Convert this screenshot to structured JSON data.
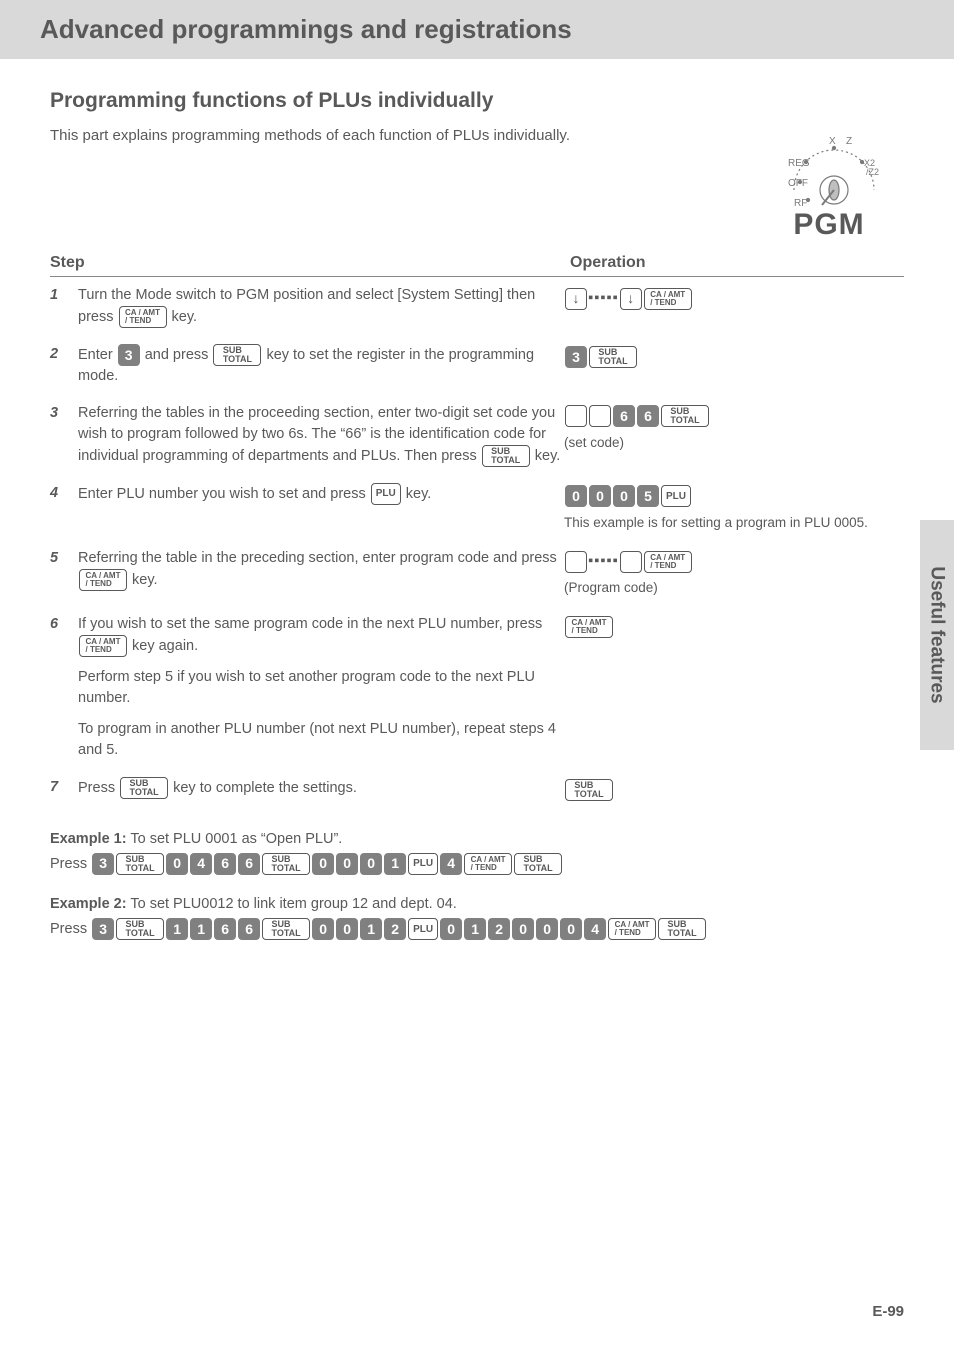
{
  "header": "Advanced programmings and registrations",
  "subheading": "Programming functions of PLUs individually",
  "intro": "This part explains programming methods of each function of PLUs individually.",
  "pgm_label": "PGM",
  "dial": {
    "labels": [
      "X",
      "Z",
      "REG",
      "X2/Z2",
      "OFF",
      "RF"
    ]
  },
  "columns": {
    "step": "Step",
    "operation": "Operation"
  },
  "key_labels": {
    "caamt": "CA / AMT\n/ TEND",
    "sub": "SUB\nTOTAL",
    "plu": "PLU"
  },
  "steps": [
    {
      "n": "1",
      "desc_parts": [
        "Turn the Mode switch to PGM position and select [System Setting] then press ",
        " key."
      ],
      "desc_keys": [
        {
          "t": "caamt"
        }
      ],
      "op": [
        {
          "t": "arrow",
          "v": "↓"
        },
        {
          "t": "dots"
        },
        {
          "t": "arrow",
          "v": "↓"
        },
        {
          "t": "caamt"
        }
      ]
    },
    {
      "n": "2",
      "desc_parts": [
        "Enter ",
        " and press ",
        " key to set the register in the programming mode."
      ],
      "desc_keys": [
        {
          "t": "num",
          "v": "3"
        },
        {
          "t": "sub"
        }
      ],
      "op": [
        {
          "t": "num",
          "v": "3"
        },
        {
          "t": "sub"
        }
      ]
    },
    {
      "n": "3",
      "desc_parts": [
        "Referring the tables in the proceeding section, enter two-digit set code you wish to program followed by two 6s. The “66” is the identification code for individual programming of departments and PLUs. Then press ",
        " key."
      ],
      "desc_keys": [
        {
          "t": "sub"
        }
      ],
      "op": [
        {
          "t": "blank"
        },
        {
          "t": "blank"
        },
        {
          "t": "num",
          "v": "6"
        },
        {
          "t": "num",
          "v": "6"
        },
        {
          "t": "sub"
        }
      ],
      "op_hint": "(set code)"
    },
    {
      "n": "4",
      "desc_parts": [
        "Enter PLU number you wish to set and press ",
        " key."
      ],
      "desc_keys": [
        {
          "t": "plu"
        }
      ],
      "op": [
        {
          "t": "num",
          "v": "0"
        },
        {
          "t": "num",
          "v": "0"
        },
        {
          "t": "num",
          "v": "0"
        },
        {
          "t": "num",
          "v": "5"
        },
        {
          "t": "plu"
        }
      ],
      "op_hint": "This example is for setting a program in PLU 0005."
    },
    {
      "n": "5",
      "desc_parts": [
        "Referring the table in the preceding section, enter program code and press ",
        " key."
      ],
      "desc_keys": [
        {
          "t": "caamt"
        }
      ],
      "op": [
        {
          "t": "blank"
        },
        {
          "t": "dots"
        },
        {
          "t": "blank"
        },
        {
          "t": "caamt"
        }
      ],
      "op_hint": "(Program code)"
    },
    {
      "n": "6",
      "desc_parts": [
        "If you wish to set the same program code in the next PLU number, press ",
        " key again."
      ],
      "desc_keys": [
        {
          "t": "caamt"
        }
      ],
      "extra": [
        "Perform step 5 if you wish to set another program code to the next PLU number.",
        "To program in another PLU number (not next PLU number), repeat steps 4 and 5."
      ],
      "op": [
        {
          "t": "caamt"
        }
      ]
    },
    {
      "n": "7",
      "desc_parts": [
        "Press ",
        " key to complete the settings."
      ],
      "desc_keys": [
        {
          "t": "sub"
        }
      ],
      "op": [
        {
          "t": "sub"
        }
      ]
    }
  ],
  "examples": [
    {
      "label": "Example 1:",
      "text": " To set PLU 0001 as “Open PLU”.",
      "press_prefix": "Press ",
      "seq": [
        {
          "t": "num",
          "v": "3"
        },
        {
          "t": "sub"
        },
        {
          "t": "num",
          "v": "0"
        },
        {
          "t": "num",
          "v": "4"
        },
        {
          "t": "num",
          "v": "6"
        },
        {
          "t": "num",
          "v": "6"
        },
        {
          "t": "sub"
        },
        {
          "t": "num",
          "v": "0"
        },
        {
          "t": "num",
          "v": "0"
        },
        {
          "t": "num",
          "v": "0"
        },
        {
          "t": "num",
          "v": "1"
        },
        {
          "t": "plu"
        },
        {
          "t": "num",
          "v": "4"
        },
        {
          "t": "caamt"
        },
        {
          "t": "sub"
        }
      ]
    },
    {
      "label": "Example 2:",
      "text": " To set PLU0012 to link item group 12 and dept. 04.",
      "press_prefix": "Press ",
      "seq": [
        {
          "t": "num",
          "v": "3"
        },
        {
          "t": "sub"
        },
        {
          "t": "num",
          "v": "1"
        },
        {
          "t": "num",
          "v": "1"
        },
        {
          "t": "num",
          "v": "6"
        },
        {
          "t": "num",
          "v": "6"
        },
        {
          "t": "sub"
        },
        {
          "t": "num",
          "v": "0"
        },
        {
          "t": "num",
          "v": "0"
        },
        {
          "t": "num",
          "v": "1"
        },
        {
          "t": "num",
          "v": "2"
        },
        {
          "t": "plu"
        },
        {
          "t": "num",
          "v": "0"
        },
        {
          "t": "num",
          "v": "1"
        },
        {
          "t": "num",
          "v": "2"
        },
        {
          "t": "num",
          "v": "0"
        },
        {
          "t": "num",
          "v": "0"
        },
        {
          "t": "num",
          "v": "0"
        },
        {
          "t": "num",
          "v": "4"
        },
        {
          "t": "caamt"
        },
        {
          "t": "sub"
        }
      ]
    }
  ],
  "sidetab": "Useful features",
  "pagenum": "E-99"
}
